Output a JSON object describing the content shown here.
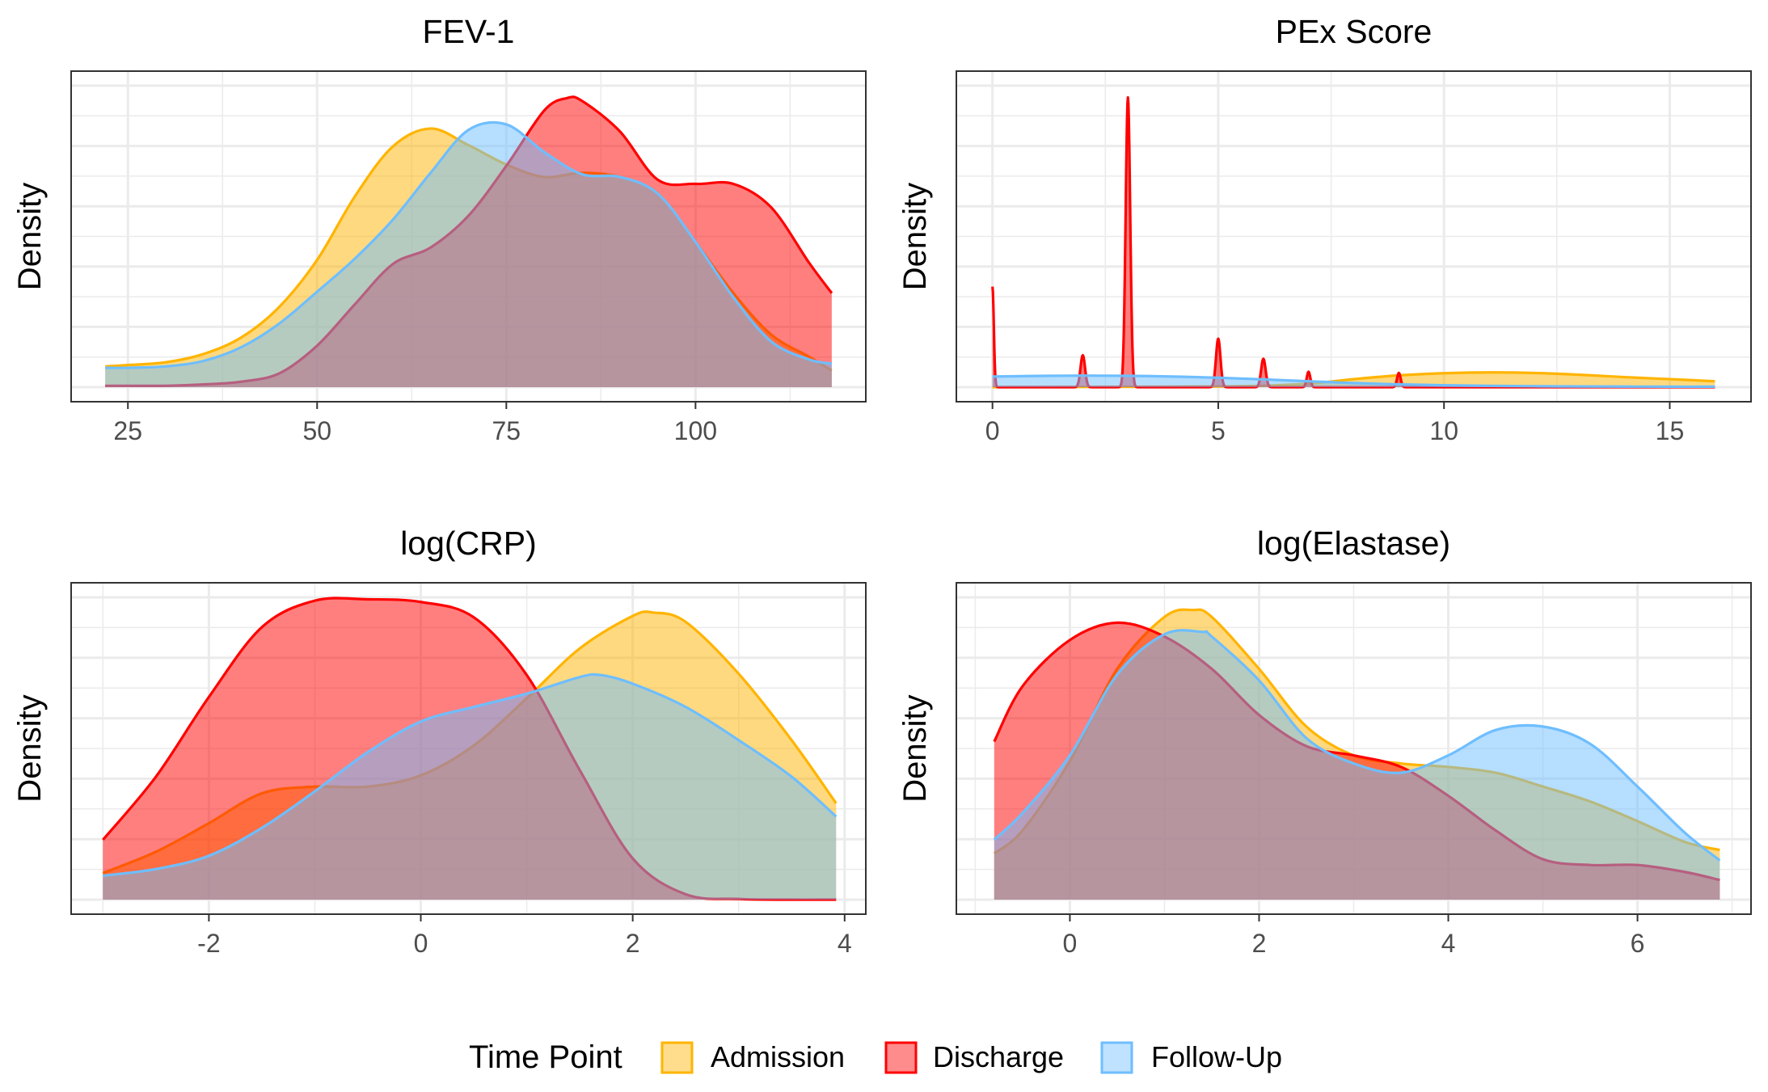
{
  "chart_data": [
    {
      "type": "area",
      "title": "FEV-1",
      "xlabel": "",
      "ylabel": "Density",
      "xlim": [
        17.5,
        122.5
      ],
      "xticks": [
        25,
        50,
        75,
        100
      ],
      "tick_labels": [
        "25",
        "50",
        "75",
        "100"
      ],
      "ylim": [
        0,
        0.0218
      ],
      "grid": true,
      "series": [
        {
          "name": "Admission",
          "x": [
            22,
            25,
            30,
            35,
            40,
            45,
            50,
            55,
            60,
            65,
            70,
            75,
            80,
            85,
            90,
            95,
            100,
            105,
            110,
            115,
            118
          ],
          "y": [
            0.0015,
            0.0016,
            0.0018,
            0.0024,
            0.0036,
            0.0058,
            0.0092,
            0.0138,
            0.0174,
            0.0187,
            0.0175,
            0.0161,
            0.0152,
            0.0155,
            0.0152,
            0.014,
            0.0105,
            0.0068,
            0.0038,
            0.0022,
            0.0012
          ]
        },
        {
          "name": "Discharge",
          "x": [
            22,
            25,
            30,
            35,
            40,
            45,
            50,
            55,
            60,
            65,
            70,
            75,
            80,
            83,
            85,
            90,
            95,
            100,
            105,
            110,
            115,
            118
          ],
          "y": [
            0.0001,
            0.0001,
            0.0001,
            0.0002,
            0.0004,
            0.001,
            0.003,
            0.006,
            0.0089,
            0.0101,
            0.0124,
            0.016,
            0.02,
            0.0209,
            0.0207,
            0.0185,
            0.015,
            0.0147,
            0.0147,
            0.013,
            0.009,
            0.0068
          ]
        },
        {
          "name": "Follow-Up",
          "x": [
            22,
            25,
            30,
            35,
            40,
            45,
            50,
            55,
            60,
            65,
            70,
            75,
            80,
            85,
            90,
            95,
            100,
            105,
            110,
            115,
            118
          ],
          "y": [
            0.0014,
            0.0014,
            0.0015,
            0.0019,
            0.0029,
            0.0046,
            0.0069,
            0.0093,
            0.0121,
            0.0155,
            0.0186,
            0.019,
            0.017,
            0.0154,
            0.0152,
            0.014,
            0.0105,
            0.0065,
            0.0033,
            0.002,
            0.0017
          ]
        }
      ]
    },
    {
      "type": "area",
      "title": "PEx Score",
      "xlabel": "",
      "ylabel": "Density",
      "xlim": [
        -0.8,
        16.8
      ],
      "xticks": [
        0,
        5,
        10,
        15
      ],
      "tick_labels": [
        "0",
        "5",
        "10",
        "15"
      ],
      "ylim": [
        0,
        2.55
      ],
      "grid": true,
      "series": [
        {
          "name": "Admission",
          "x": [
            0,
            1,
            2,
            3,
            4,
            5,
            6,
            7,
            8,
            9,
            10,
            11,
            12,
            13,
            14,
            15,
            16
          ],
          "y": [
            0.0,
            0.001,
            0.002,
            0.003,
            0.004,
            0.006,
            0.012,
            0.03,
            0.068,
            0.1,
            0.118,
            0.125,
            0.12,
            0.105,
            0.085,
            0.068,
            0.05
          ]
        },
        {
          "name": "Discharge",
          "x": [
            0,
            2,
            3,
            5,
            6,
            7,
            9
          ],
          "y": [
            0.85,
            0.27,
            2.45,
            0.41,
            0.24,
            0.13,
            0.12
          ],
          "peak_width": [
            0.03,
            0.05,
            0.05,
            0.05,
            0.05,
            0.04,
            0.04
          ]
        },
        {
          "name": "Follow-Up",
          "x": [
            0,
            1,
            2,
            3,
            4,
            5,
            6,
            7,
            8,
            9,
            10,
            11,
            12,
            13,
            14,
            15,
            16
          ],
          "y": [
            0.09,
            0.095,
            0.098,
            0.096,
            0.09,
            0.08,
            0.066,
            0.05,
            0.035,
            0.024,
            0.016,
            0.011,
            0.008,
            0.006,
            0.005,
            0.004,
            0.004
          ]
        }
      ]
    },
    {
      "type": "area",
      "title": "log(CRP)",
      "xlabel": "",
      "ylabel": "Density",
      "xlim": [
        -3.3,
        4.2
      ],
      "xticks": [
        -2,
        0,
        2,
        4
      ],
      "tick_labels": [
        "-2",
        "0",
        "2",
        "4"
      ],
      "ylim": [
        0,
        0.455
      ],
      "grid": true,
      "series": [
        {
          "name": "Admission",
          "x": [
            -3,
            -2.5,
            -2,
            -1.5,
            -1,
            -0.5,
            0,
            0.5,
            1,
            1.5,
            2,
            2.2,
            2.5,
            3,
            3.5,
            3.92
          ],
          "y": [
            0.04,
            0.072,
            0.115,
            0.16,
            0.17,
            0.17,
            0.187,
            0.232,
            0.303,
            0.378,
            0.427,
            0.432,
            0.418,
            0.34,
            0.24,
            0.145
          ]
        },
        {
          "name": "Discharge",
          "x": [
            -3,
            -2.5,
            -2,
            -1.5,
            -1,
            -0.5,
            0,
            0.5,
            1,
            1.5,
            2,
            2.5,
            3,
            3.5,
            3.92
          ],
          "y": [
            0.09,
            0.185,
            0.305,
            0.41,
            0.45,
            0.452,
            0.448,
            0.425,
            0.338,
            0.195,
            0.062,
            0.008,
            0.001,
            0.0,
            0.0
          ]
        },
        {
          "name": "Follow-Up",
          "x": [
            -3,
            -2.5,
            -2,
            -1.5,
            -1,
            -0.5,
            0,
            0.5,
            1,
            1.5,
            1.7,
            2,
            2.5,
            3,
            3.5,
            3.92
          ],
          "y": [
            0.036,
            0.046,
            0.066,
            0.108,
            0.163,
            0.222,
            0.268,
            0.29,
            0.31,
            0.335,
            0.338,
            0.325,
            0.29,
            0.24,
            0.185,
            0.125
          ]
        }
      ]
    },
    {
      "type": "area",
      "title": "log(Elastase)",
      "xlabel": "",
      "ylabel": "Density",
      "xlim": [
        -1.2,
        7.2
      ],
      "xticks": [
        0,
        2,
        4,
        6
      ],
      "tick_labels": [
        "0",
        "2",
        "4",
        "6"
      ],
      "ylim": [
        0,
        0.262
      ],
      "grid": true,
      "series": [
        {
          "name": "Admission",
          "x": [
            -0.8,
            -0.5,
            0,
            0.5,
            1,
            1.3,
            1.5,
            2,
            2.5,
            3,
            3.5,
            4,
            4.5,
            5,
            5.5,
            6,
            6.5,
            6.87
          ],
          "y": [
            0.04,
            0.06,
            0.12,
            0.2,
            0.245,
            0.251,
            0.245,
            0.2,
            0.15,
            0.125,
            0.118,
            0.115,
            0.11,
            0.098,
            0.085,
            0.068,
            0.05,
            0.043
          ]
        },
        {
          "name": "Discharge",
          "x": [
            -0.8,
            -0.5,
            0,
            0.5,
            1,
            1.5,
            2,
            2.5,
            3,
            3.5,
            4,
            4.5,
            5,
            5.5,
            6,
            6.5,
            6.87
          ],
          "y": [
            0.137,
            0.185,
            0.225,
            0.24,
            0.228,
            0.2,
            0.16,
            0.133,
            0.125,
            0.115,
            0.09,
            0.06,
            0.035,
            0.03,
            0.03,
            0.024,
            0.017
          ]
        },
        {
          "name": "Follow-Up",
          "x": [
            -0.8,
            -0.5,
            0,
            0.5,
            1,
            1.4,
            1.5,
            2,
            2.5,
            3,
            3.5,
            4,
            4.5,
            5,
            5.5,
            6,
            6.5,
            6.87
          ],
          "y": [
            0.052,
            0.075,
            0.125,
            0.195,
            0.23,
            0.232,
            0.228,
            0.19,
            0.14,
            0.118,
            0.11,
            0.125,
            0.147,
            0.15,
            0.135,
            0.098,
            0.058,
            0.034
          ]
        }
      ]
    }
  ],
  "legend": {
    "title": "Time Point",
    "placement": "bottom",
    "items": [
      {
        "label": "Admission",
        "color": "#FFB400"
      },
      {
        "label": "Discharge",
        "color": "#FF0000"
      },
      {
        "label": "Follow-Up",
        "color": "#6EBEFF"
      }
    ]
  },
  "colors": {
    "Admission": "#FFB400",
    "Discharge": "#FF0000",
    "Follow-Up": "#6EBEFF"
  }
}
